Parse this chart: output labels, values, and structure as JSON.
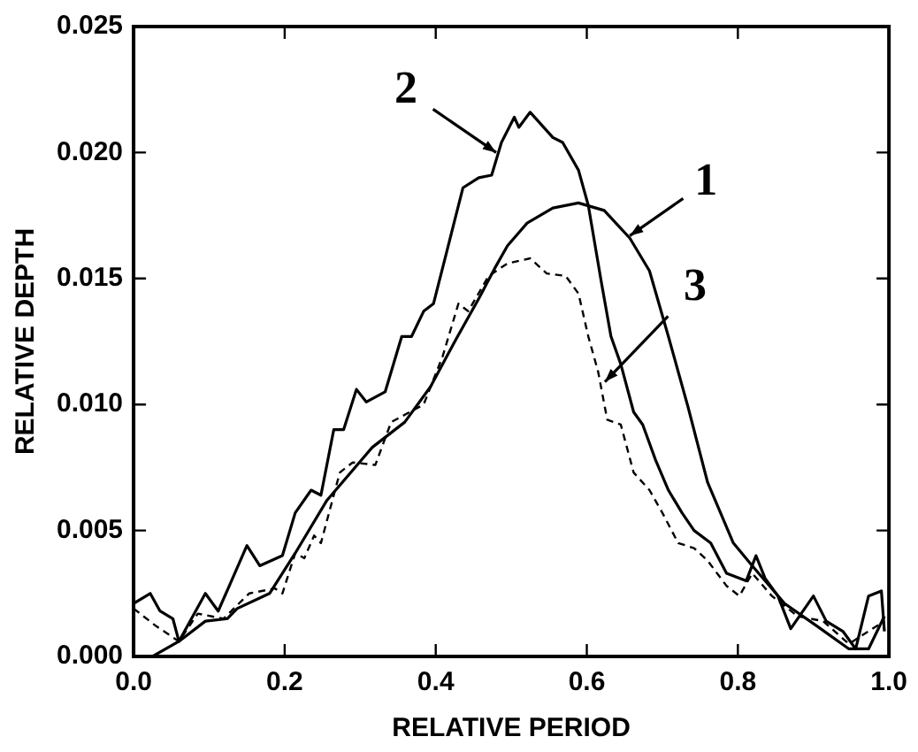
{
  "chart_data": {
    "type": "line",
    "xlabel": "RELATIVE PERIOD",
    "ylabel": "RELATIVE DEPTH",
    "xlim": [
      0,
      1
    ],
    "ylim": [
      0,
      0.025
    ],
    "xticks": [
      {
        "value": 0,
        "label": "0.0"
      },
      {
        "value": 0.2,
        "label": "0.2"
      },
      {
        "value": 0.4,
        "label": "0.4"
      },
      {
        "value": 0.6,
        "label": "0.6"
      },
      {
        "value": 0.8,
        "label": "0.8"
      },
      {
        "value": 1,
        "label": "1.0"
      }
    ],
    "yticks": [
      {
        "value": 0,
        "label": "0.000"
      },
      {
        "value": 0.005,
        "label": "0.005"
      },
      {
        "value": 0.01,
        "label": "0.010"
      },
      {
        "value": 0.015,
        "label": "0.015"
      },
      {
        "value": 0.02,
        "label": "0.020"
      },
      {
        "value": 0.025,
        "label": "0.025"
      }
    ],
    "grid": false,
    "legend": false,
    "marker": "none",
    "series": [
      {
        "color": "#000000",
        "line_style": "solid",
        "x": [
          0,
          0.025,
          0.06,
          0.095,
          0.124,
          0.137,
          0.18,
          0.214,
          0.256,
          0.316,
          0.359,
          0.393,
          0.427,
          0.457,
          0.478,
          0.495,
          0.521,
          0.555,
          0.589,
          0.623,
          0.657,
          0.683,
          0.708,
          0.734,
          0.76,
          0.794,
          0.819,
          0.862,
          0.905,
          0.947,
          0.973,
          0.994
        ],
        "values": [
          0,
          0,
          0.0006,
          0.0014,
          0.0015,
          0.0019,
          0.0025,
          0.0041,
          0.0062,
          0.0083,
          0.0093,
          0.0107,
          0.0126,
          0.0142,
          0.0154,
          0.0163,
          0.0172,
          0.0178,
          0.018,
          0.0177,
          0.0166,
          0.0153,
          0.0127,
          0.0099,
          0.0069,
          0.0045,
          0.0036,
          0.0021,
          0.0012,
          0.0003,
          0.0003,
          0.0016
        ]
      },
      {
        "color": "#000000",
        "line_style": "solid",
        "x": [
          0,
          0.022,
          0.035,
          0.052,
          0.06,
          0.095,
          0.112,
          0.15,
          0.167,
          0.197,
          0.214,
          0.235,
          0.248,
          0.265,
          0.278,
          0.295,
          0.308,
          0.333,
          0.355,
          0.368,
          0.384,
          0.397,
          0.414,
          0.436,
          0.457,
          0.474,
          0.487,
          0.504,
          0.51,
          0.525,
          0.555,
          0.568,
          0.589,
          0.602,
          0.619,
          0.632,
          0.645,
          0.662,
          0.674,
          0.691,
          0.708,
          0.726,
          0.742,
          0.764,
          0.785,
          0.811,
          0.824,
          0.836,
          0.853,
          0.87,
          0.9,
          0.917,
          0.939,
          0.956,
          0.973,
          0.99,
          0.994
        ],
        "values": [
          0.0021,
          0.0025,
          0.0018,
          0.0015,
          0.0006,
          0.0025,
          0.0018,
          0.0044,
          0.0036,
          0.004,
          0.0057,
          0.0066,
          0.0064,
          0.009,
          0.009,
          0.0106,
          0.0101,
          0.0105,
          0.0127,
          0.0127,
          0.0137,
          0.014,
          0.016,
          0.0186,
          0.019,
          0.0191,
          0.0204,
          0.0214,
          0.021,
          0.0216,
          0.0206,
          0.0204,
          0.0193,
          0.0179,
          0.0149,
          0.0127,
          0.0116,
          0.0097,
          0.0092,
          0.0078,
          0.0066,
          0.0057,
          0.005,
          0.0045,
          0.0033,
          0.003,
          0.004,
          0.0031,
          0.0024,
          0.0011,
          0.0024,
          0.0014,
          0.001,
          0.0003,
          0.0024,
          0.0026,
          0.001
        ]
      },
      {
        "color": "#000000",
        "line_style": "dashed",
        "x": [
          0,
          0.03,
          0.06,
          0.085,
          0.119,
          0.153,
          0.187,
          0.197,
          0.214,
          0.226,
          0.239,
          0.248,
          0.273,
          0.29,
          0.32,
          0.341,
          0.384,
          0.409,
          0.43,
          0.443,
          0.47,
          0.495,
          0.525,
          0.547,
          0.572,
          0.589,
          0.602,
          0.615,
          0.627,
          0.645,
          0.662,
          0.683,
          0.7,
          0.721,
          0.742,
          0.76,
          0.785,
          0.802,
          0.819,
          0.845,
          0.879,
          0.913,
          0.947,
          0.973,
          0.994
        ],
        "values": [
          0.0019,
          0.0012,
          0.0006,
          0.0017,
          0.0015,
          0.0025,
          0.0027,
          0.0025,
          0.0041,
          0.0039,
          0.0048,
          0.0045,
          0.0073,
          0.0077,
          0.0076,
          0.0093,
          0.01,
          0.0119,
          0.014,
          0.0137,
          0.0151,
          0.0156,
          0.0158,
          0.0152,
          0.0151,
          0.0144,
          0.0127,
          0.0113,
          0.0094,
          0.0092,
          0.0073,
          0.0066,
          0.0057,
          0.0045,
          0.0043,
          0.0038,
          0.0028,
          0.0024,
          0.0033,
          0.0024,
          0.0016,
          0.0014,
          0.0005,
          0.001,
          0.0014
        ]
      }
    ],
    "annotations": [
      {
        "text": "1",
        "x": 0.657,
        "y": 0.0167
      },
      {
        "text": "2",
        "x": 0.48,
        "y": 0.02
      },
      {
        "text": "3",
        "x": 0.624,
        "y": 0.0109
      }
    ]
  }
}
